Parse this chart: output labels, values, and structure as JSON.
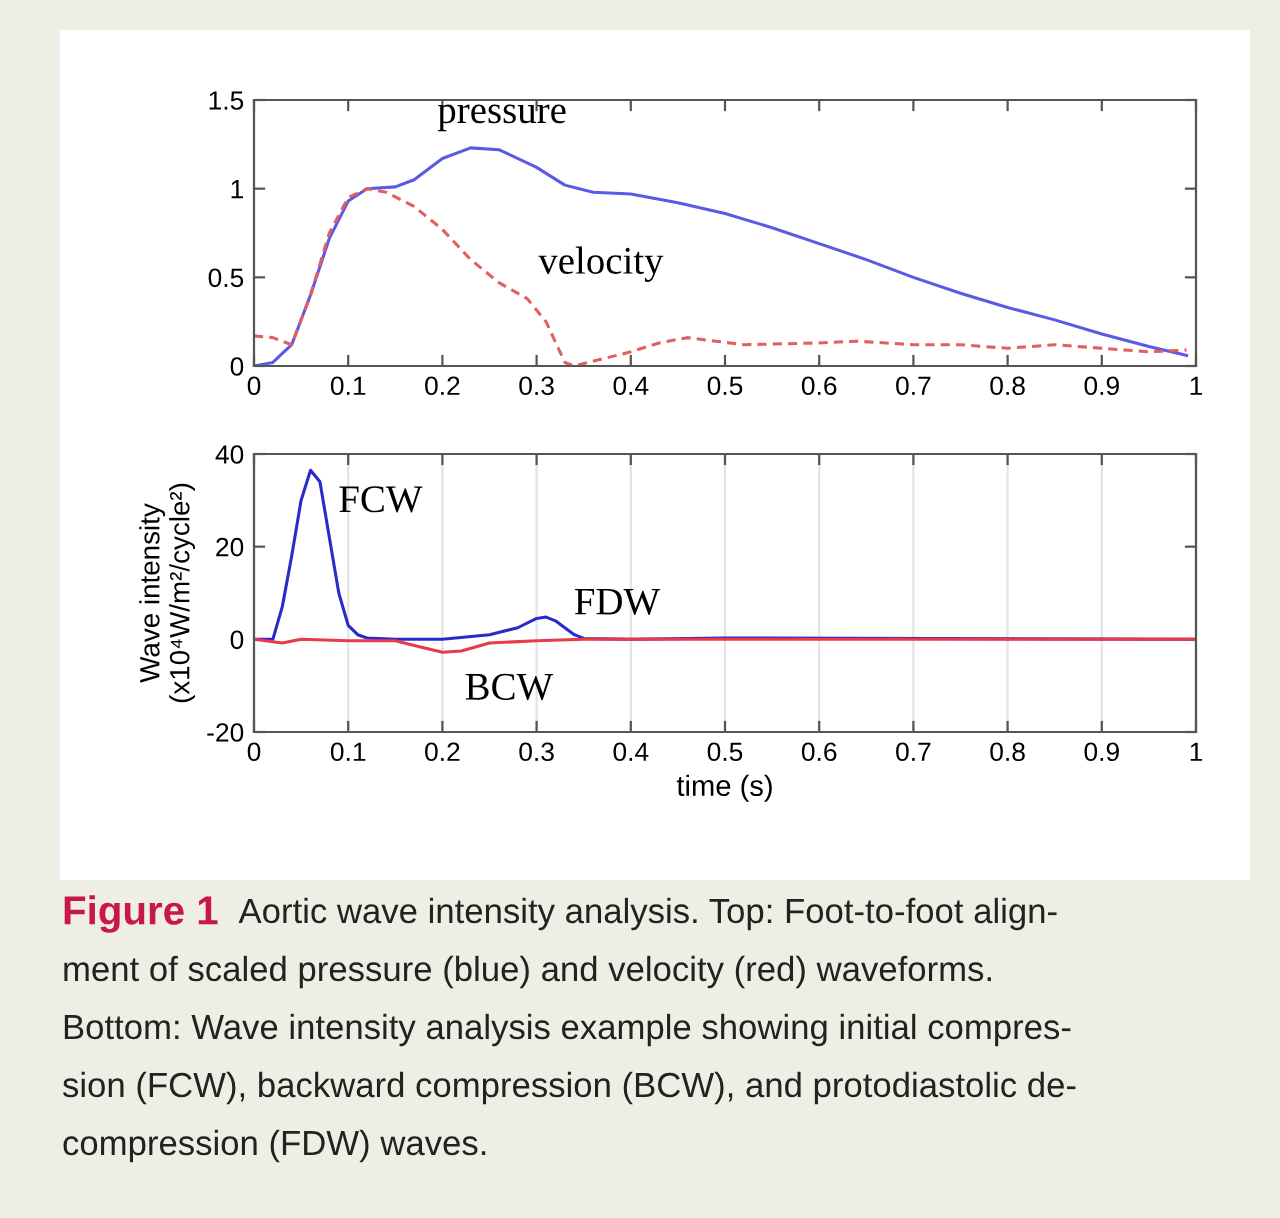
{
  "chart_data": [
    {
      "type": "line",
      "xlim": [
        0,
        1
      ],
      "xticks": [
        0,
        0.1,
        0.2,
        0.3,
        0.4,
        0.5,
        0.6,
        0.7,
        0.8,
        0.9,
        1
      ],
      "ylim": [
        0,
        1.5
      ],
      "yticks": [
        0,
        0.5,
        1,
        1.5
      ],
      "grid": false,
      "legend": false,
      "series": [
        {
          "name": "pressure",
          "color": "#5a5ae6",
          "line_style": "solid",
          "x": [
            0,
            0.02,
            0.04,
            0.06,
            0.08,
            0.1,
            0.12,
            0.15,
            0.17,
            0.2,
            0.23,
            0.26,
            0.3,
            0.33,
            0.36,
            0.4,
            0.45,
            0.5,
            0.55,
            0.6,
            0.65,
            0.7,
            0.75,
            0.8,
            0.85,
            0.9,
            0.95,
            0.99
          ],
          "values": [
            0,
            0.02,
            0.12,
            0.4,
            0.72,
            0.93,
            1.0,
            1.01,
            1.05,
            1.17,
            1.23,
            1.22,
            1.12,
            1.02,
            0.98,
            0.97,
            0.92,
            0.86,
            0.78,
            0.69,
            0.6,
            0.5,
            0.41,
            0.33,
            0.26,
            0.18,
            0.11,
            0.06
          ]
        },
        {
          "name": "velocity",
          "color": "#e06060",
          "line_style": "dashed",
          "x": [
            0,
            0.02,
            0.04,
            0.06,
            0.08,
            0.1,
            0.12,
            0.14,
            0.17,
            0.2,
            0.23,
            0.26,
            0.29,
            0.31,
            0.33,
            0.34,
            0.37,
            0.4,
            0.43,
            0.46,
            0.49,
            0.52,
            0.6,
            0.64,
            0.7,
            0.75,
            0.8,
            0.85,
            0.9,
            0.95,
            0.99
          ],
          "values": [
            0.17,
            0.16,
            0.12,
            0.4,
            0.75,
            0.95,
            1.0,
            0.98,
            0.9,
            0.77,
            0.6,
            0.47,
            0.38,
            0.25,
            0.02,
            0,
            0.04,
            0.08,
            0.13,
            0.16,
            0.14,
            0.12,
            0.13,
            0.14,
            0.12,
            0.12,
            0.1,
            0.12,
            0.1,
            0.08,
            0.09
          ]
        }
      ]
    },
    {
      "type": "line",
      "xlabel": "time (s)",
      "ylabel": "Wave intensity\n(x10⁴W/m²/cycle²)",
      "xlim": [
        0,
        1
      ],
      "xticks": [
        0,
        0.1,
        0.2,
        0.3,
        0.4,
        0.5,
        0.6,
        0.7,
        0.8,
        0.9,
        1
      ],
      "ylim": [
        -20,
        40
      ],
      "yticks": [
        -20,
        0,
        20,
        40
      ],
      "grid": "x",
      "legend": false,
      "series": [
        {
          "color": "#2a2ac8",
          "line_style": "solid",
          "x": [
            0,
            0.02,
            0.03,
            0.04,
            0.05,
            0.06,
            0.07,
            0.08,
            0.09,
            0.1,
            0.11,
            0.12,
            0.15,
            0.2,
            0.25,
            0.28,
            0.3,
            0.31,
            0.32,
            0.34,
            0.35,
            0.4,
            0.5,
            1
          ],
          "values": [
            0,
            0,
            7,
            18,
            30,
            36.5,
            34,
            22,
            10,
            3,
            1,
            0.3,
            0,
            0,
            1,
            2.5,
            4.5,
            4.8,
            4,
            1,
            0.2,
            0,
            0.3,
            0
          ]
        },
        {
          "color": "#e83a4a",
          "line_style": "solid",
          "x": [
            0,
            0.03,
            0.05,
            0.1,
            0.15,
            0.18,
            0.2,
            0.22,
            0.25,
            0.3,
            0.35,
            1
          ],
          "values": [
            0,
            -0.8,
            0,
            -0.3,
            -0.3,
            -1.8,
            -2.8,
            -2.5,
            -0.8,
            -0.3,
            0,
            0
          ]
        }
      ],
      "annotations": [
        {
          "text": "FCW",
          "x": 0.06,
          "y": 36.5
        },
        {
          "text": "FDW",
          "x": 0.31,
          "y": 4.8
        },
        {
          "text": "BCW",
          "x": 0.2,
          "y": -2.8
        },
        "Figure 1",
        "Aortic wave intensity analysis. Top: Foot-to-foot align-\nment of scaled pressure (blue) and velocity (red) waveforms.\nBottom: Wave intensity analysis example showing initial compres-\nsion (FCW), backward compression (BCW), and protodiastolic de-\ncompression (FDW) waves."
      ]
    }
  ]
}
